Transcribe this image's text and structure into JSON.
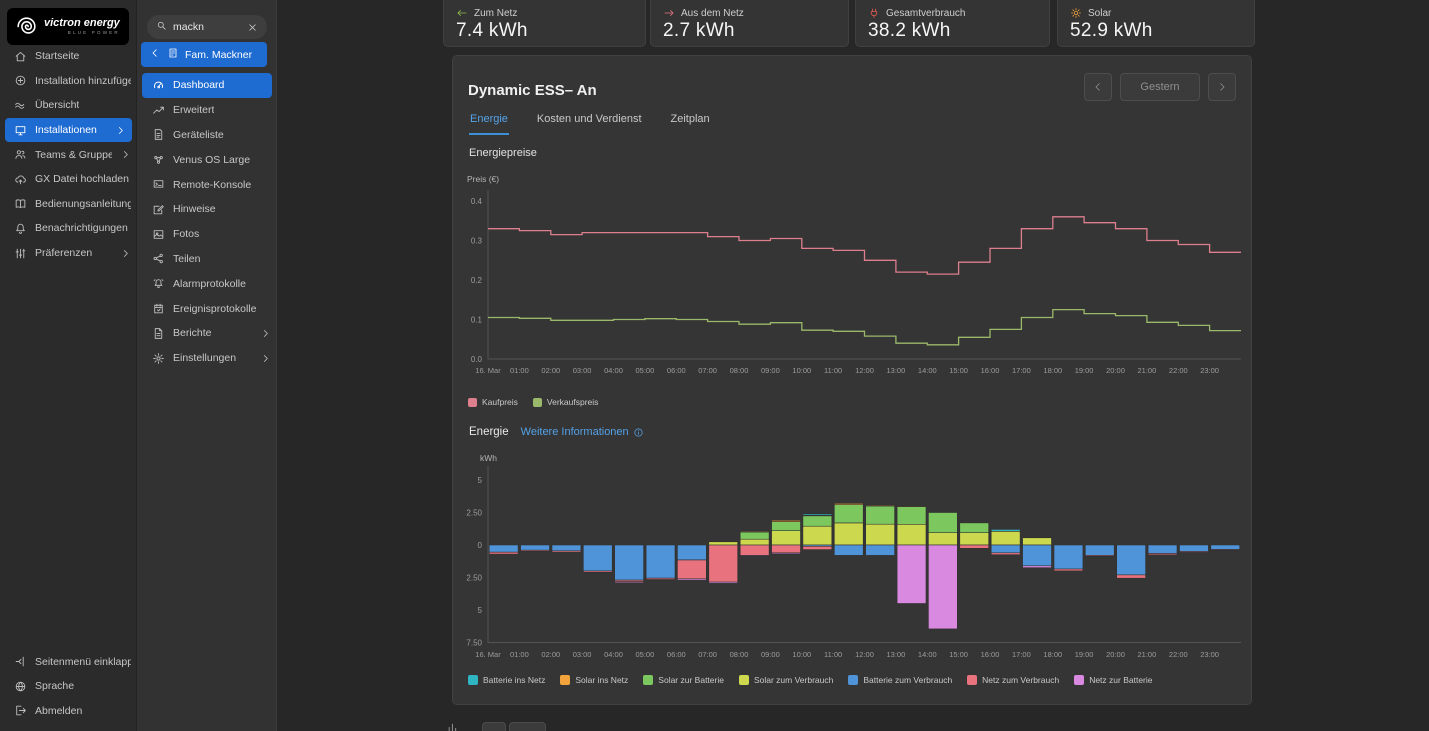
{
  "app": {
    "brand": "victron energy",
    "brand_sub": "BLUE POWER"
  },
  "colors": {
    "accent_blue": "#1e6bd2",
    "link_blue": "#54a1e6"
  },
  "main_sidebar": {
    "items": [
      {
        "label": "Startseite",
        "icon": "home"
      },
      {
        "label": "Installation hinzufügen",
        "icon": "plus-circle"
      },
      {
        "label": "Übersicht",
        "icon": "waves"
      },
      {
        "label": "Installationen",
        "icon": "monitor",
        "active": true,
        "chevron": true
      },
      {
        "label": "Teams & Gruppen",
        "icon": "users",
        "chevron": true
      },
      {
        "label": "GX Datei hochladen",
        "icon": "cloud-upload"
      },
      {
        "label": "Bedienungsanleitung",
        "icon": "book"
      },
      {
        "label": "Benachrichtigungen",
        "icon": "bell"
      },
      {
        "label": "Präferenzen",
        "icon": "sliders",
        "chevron": true
      }
    ],
    "footer_items": [
      {
        "label": "Seitenmenü einklappen",
        "icon": "collapse"
      },
      {
        "label": "Sprache",
        "icon": "globe"
      },
      {
        "label": "Abmelden",
        "icon": "logout"
      }
    ]
  },
  "install_sidebar": {
    "search_value": "mackn",
    "back_label": "Fam. Mackner",
    "items": [
      {
        "label": "Dashboard",
        "icon": "gauge",
        "active": true
      },
      {
        "label": "Erweitert",
        "icon": "chart-line"
      },
      {
        "label": "Geräteliste",
        "icon": "device-list"
      },
      {
        "label": "Venus OS Large",
        "icon": "nodes"
      },
      {
        "label": "Remote-Konsole",
        "icon": "console"
      },
      {
        "label": "Hinweise",
        "icon": "pencil"
      },
      {
        "label": "Fotos",
        "icon": "photo"
      },
      {
        "label": "Teilen",
        "icon": "share"
      },
      {
        "label": "Alarmprotokolle",
        "icon": "alarm"
      },
      {
        "label": "Ereignisprotokolle",
        "icon": "events"
      },
      {
        "label": "Berichte",
        "icon": "report",
        "chevron": true
      },
      {
        "label": "Einstellungen",
        "icon": "gear",
        "chevron": true
      }
    ]
  },
  "stat_cards": [
    {
      "label": "Zum Netz",
      "value": "7.4 kWh",
      "icon": "arrow-left",
      "icon_color": "#8fbf4d"
    },
    {
      "label": "Aus dem Netz",
      "value": "2.7 kWh",
      "icon": "arrow-right",
      "icon_color": "#e8737f"
    },
    {
      "label": "Gesamtverbrauch",
      "value": "38.2 kWh",
      "icon": "plug",
      "icon_color": "#e05c54"
    },
    {
      "label": "Solar",
      "value": "52.9 kWh",
      "icon": "sun",
      "icon_color": "#f2a33c"
    }
  ],
  "panel": {
    "title": "Dynamic ESS– An",
    "date_nav_label": "Gestern",
    "tabs": [
      {
        "label": "Energie",
        "active": true
      },
      {
        "label": "Kosten und Verdienst"
      },
      {
        "label": "Zeitplan"
      }
    ],
    "energy_link": "Weitere Informationen"
  },
  "chart_data": [
    {
      "type": "line",
      "variant": "step",
      "title": "Energiepreise",
      "ylabel": "Preis (€)",
      "ylim": [
        0,
        0.4
      ],
      "yticks": [
        "0.4",
        "0.3",
        "0.2",
        "0.1",
        "0.0"
      ],
      "ytick_values": [
        0.4,
        0.3,
        0.2,
        0.1,
        0
      ],
      "grid": false,
      "legend_position": "bottom",
      "x": [
        "16. Mar",
        "01:00",
        "02:00",
        "03:00",
        "04:00",
        "05:00",
        "06:00",
        "07:00",
        "08:00",
        "09:00",
        "10:00",
        "11:00",
        "12:00",
        "13:00",
        "14:00",
        "15:00",
        "16:00",
        "17:00",
        "18:00",
        "19:00",
        "20:00",
        "21:00",
        "22:00",
        "23:00"
      ],
      "series": [
        {
          "name": "Kaufpreis",
          "color": "#dd7f8d",
          "values": [
            0.33,
            0.325,
            0.315,
            0.32,
            0.32,
            0.32,
            0.32,
            0.31,
            0.3,
            0.305,
            0.28,
            0.275,
            0.25,
            0.22,
            0.215,
            0.245,
            0.28,
            0.33,
            0.36,
            0.345,
            0.33,
            0.3,
            0.29,
            0.27
          ]
        },
        {
          "name": "Verkaufspreis",
          "color": "#9ab96a",
          "values": [
            0.105,
            0.103,
            0.098,
            0.098,
            0.1,
            0.102,
            0.1,
            0.095,
            0.088,
            0.092,
            0.073,
            0.07,
            0.058,
            0.04,
            0.036,
            0.055,
            0.075,
            0.105,
            0.125,
            0.115,
            0.11,
            0.093,
            0.085,
            0.072
          ]
        }
      ]
    },
    {
      "type": "bar",
      "stacked": true,
      "title": "Energie",
      "ylabel": "kWh",
      "ylim": [
        5,
        -7.5
      ],
      "yticks": [
        "5",
        "2.50",
        "0",
        "2.50",
        "5",
        "7.50"
      ],
      "ytick_values": [
        5,
        2.5,
        0,
        -2.5,
        -5,
        -7.5
      ],
      "grid": false,
      "legend_position": "bottom",
      "x": [
        "16. Mar",
        "01:00",
        "02:00",
        "03:00",
        "04:00",
        "05:00",
        "06:00",
        "07:00",
        "08:00",
        "09:00",
        "10:00",
        "11:00",
        "12:00",
        "13:00",
        "14:00",
        "15:00",
        "16:00",
        "17:00",
        "18:00",
        "19:00",
        "20:00",
        "21:00",
        "22:00",
        "23:00"
      ],
      "series": [
        {
          "name": "Batterie ins Netz",
          "color": "#2fb5c2",
          "values": [
            0,
            0,
            0,
            0,
            0,
            0,
            0,
            0,
            0,
            0,
            0.1,
            0,
            0,
            0,
            0,
            0,
            0.15,
            0,
            0,
            0,
            0,
            0,
            0,
            0
          ]
        },
        {
          "name": "Solar ins Netz",
          "color": "#f2a33c",
          "values": [
            0,
            0,
            0,
            0,
            0,
            0,
            0,
            0,
            0.06,
            0.1,
            0.05,
            0.1,
            0.06,
            0.05,
            0,
            0,
            0,
            0,
            0,
            0,
            0,
            0,
            0,
            0
          ]
        },
        {
          "name": "Solar zur Batterie",
          "color": "#7cc85e",
          "values": [
            0,
            0,
            0,
            0,
            0,
            0,
            0,
            0,
            0.55,
            0.7,
            0.8,
            1.4,
            1.4,
            1.35,
            1.55,
            0.75,
            0,
            0,
            0,
            0,
            0,
            0,
            0,
            0
          ]
        },
        {
          "name": "Solar zum Verbrauch",
          "color": "#ccd94e",
          "values": [
            0,
            0,
            0,
            0,
            0,
            0,
            0,
            0.25,
            0.45,
            1.1,
            1.45,
            1.7,
            1.6,
            1.6,
            0.95,
            0.95,
            1.05,
            0.55,
            0,
            0,
            0,
            0,
            0,
            0
          ]
        },
        {
          "name": "Batterie zum Verbrauch",
          "color": "#4f94d8",
          "values": [
            -0.55,
            -0.4,
            -0.45,
            -2.0,
            -2.7,
            -2.55,
            -1.15,
            0,
            0,
            0,
            -0.1,
            -0.8,
            -0.8,
            0,
            0,
            0,
            -0.6,
            -1.6,
            -1.85,
            -0.8,
            -2.3,
            -0.65,
            -0.5,
            -0.35
          ]
        },
        {
          "name": "Netz zum Verbrauch",
          "color": "#e8737f",
          "values": [
            -0.15,
            -0.08,
            -0.1,
            -0.1,
            -0.12,
            -0.1,
            -1.45,
            -2.85,
            -0.8,
            -0.6,
            -0.25,
            0,
            0,
            0,
            0,
            -0.25,
            -0.15,
            0,
            -0.15,
            -0.07,
            -0.25,
            -0.1,
            -0.07,
            -0.05
          ]
        },
        {
          "name": "Netz zur Batterie",
          "color": "#d98ae0",
          "values": [
            0,
            0,
            0,
            0,
            -0.08,
            0,
            -0.1,
            -0.1,
            -0.05,
            -0.08,
            0,
            0,
            0,
            -4.5,
            -6.45,
            0,
            0,
            -0.15,
            0,
            0,
            0,
            0,
            0,
            0
          ]
        }
      ],
      "stack_order_positive": [
        "Solar zum Verbrauch",
        "Solar zur Batterie",
        "Solar ins Netz",
        "Batterie ins Netz"
      ],
      "stack_order_negative": [
        "Batterie zum Verbrauch",
        "Netz zum Verbrauch",
        "Netz zur Batterie"
      ]
    }
  ]
}
